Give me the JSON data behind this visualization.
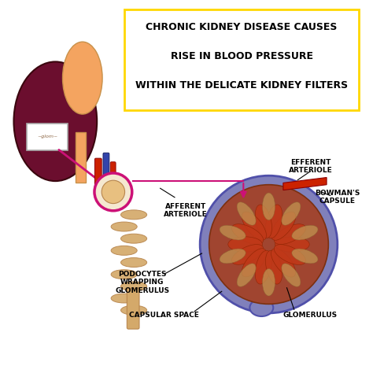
{
  "title_lines": [
    "CHRONIC KIDNEY DISEASE CAUSES",
    "RISE IN BLOOD PRESSURE",
    "WITHIN THE DELICATE KIDNEY FILTERS"
  ],
  "title_box_color": "#FFD700",
  "title_text_color": "#000000",
  "title_fontsize": 9,
  "bg_color": "#FFFFFF",
  "kidney_color": "#6B0E2E",
  "kidney_adrenal_color": "#F4A460",
  "label_fontsize": 6.5,
  "arrow_color": "#CC1177",
  "annotation_color": "#000000",
  "tubule_color": "#D4A96A",
  "tubule_dark": "#B8864E",
  "labels": {
    "afferent": "AFFERENT\nARTERIOLE",
    "efferent": "EFFERENT\nARTERIOLE",
    "bowmans": "BOWMAN'S\nCAPSULE",
    "podocytes": "PODOCYTES\nWRAPPING\nGLOMERULUS",
    "capsular": "CAPSULAR SPACE",
    "glomerulus": "GLOMERULUS"
  }
}
